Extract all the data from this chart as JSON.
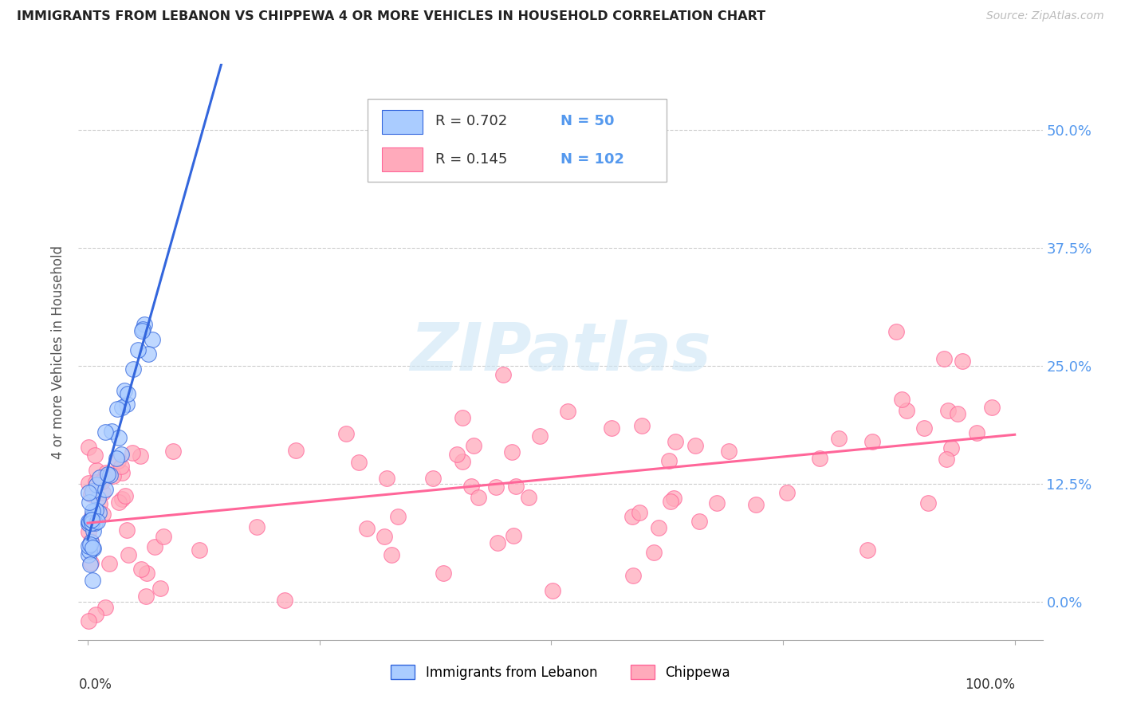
{
  "title": "IMMIGRANTS FROM LEBANON VS CHIPPEWA 4 OR MORE VEHICLES IN HOUSEHOLD CORRELATION CHART",
  "source": "Source: ZipAtlas.com",
  "ylabel": "4 or more Vehicles in Household",
  "color_lebanon": "#aaccff",
  "color_chippewa": "#ffaabb",
  "color_lebanon_line": "#3366dd",
  "color_chippewa_line": "#ff6699",
  "color_ticks": "#5599ee",
  "color_title": "#222222",
  "color_source": "#bbbbbb",
  "watermark_color": "#cce5f5",
  "legend_series1_label": "Immigrants from Lebanon",
  "legend_series1_R": "0.702",
  "legend_series1_N": "50",
  "legend_series2_label": "Chippewa",
  "legend_series2_R": "0.145",
  "legend_series2_N": "102",
  "ytick_labels": [
    "0.0%",
    "12.5%",
    "25.0%",
    "37.5%",
    "50.0%"
  ],
  "ytick_values": [
    0.0,
    0.125,
    0.25,
    0.375,
    0.5
  ],
  "xlim": [
    -0.01,
    1.03
  ],
  "ylim": [
    -0.04,
    0.57
  ]
}
